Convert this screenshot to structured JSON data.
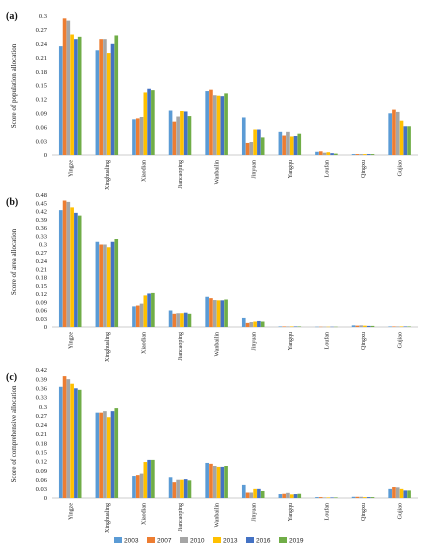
{
  "chart_data": [
    {
      "type": "bar",
      "panel_label": "(a)",
      "ylabel": "Score of population allocation",
      "ylim": [
        0,
        0.3
      ],
      "yticks": [
        "0",
        "0.03",
        "0.06",
        "0.09",
        "0.12",
        "0.15",
        "0.18",
        "0.21",
        "0.24",
        "0.27",
        "0.3"
      ],
      "categories": [
        "Yingze",
        "Xinghualing",
        "Xiaodian",
        "Jiancaoping",
        "Wanbailin",
        "Jinyuan",
        "Yangqu",
        "Loufan",
        "Qingxu",
        "Gujiao"
      ],
      "series": [
        {
          "name": "2003",
          "values": [
            0.235,
            0.226,
            0.077,
            0.096,
            0.138,
            0.081,
            0.05,
            0.007,
            0.002,
            0.09
          ]
        },
        {
          "name": "2007",
          "values": [
            0.295,
            0.25,
            0.079,
            0.072,
            0.141,
            0.026,
            0.042,
            0.008,
            0.002,
            0.098
          ]
        },
        {
          "name": "2010",
          "values": [
            0.29,
            0.25,
            0.082,
            0.083,
            0.129,
            0.028,
            0.05,
            0.005,
            0.002,
            0.093
          ]
        },
        {
          "name": "2013",
          "values": [
            0.26,
            0.22,
            0.135,
            0.095,
            0.128,
            0.055,
            0.04,
            0.006,
            0.002,
            0.074
          ]
        },
        {
          "name": "2016",
          "values": [
            0.25,
            0.24,
            0.143,
            0.094,
            0.127,
            0.055,
            0.041,
            0.004,
            0.002,
            0.062
          ]
        },
        {
          "name": "2019",
          "values": [
            0.255,
            0.258,
            0.14,
            0.084,
            0.133,
            0.038,
            0.046,
            0.003,
            0.002,
            0.062
          ]
        }
      ]
    },
    {
      "type": "bar",
      "panel_label": "(b)",
      "ylabel": "Score of area allocation",
      "ylim": [
        0,
        0.48
      ],
      "yticks": [
        "0",
        "0.03",
        "0.06",
        "0.09",
        "0.12",
        "0.15",
        "0.18",
        "0.21",
        "0.24",
        "0.27",
        "0.3",
        "0.33",
        "0.36",
        "0.39",
        "0.42",
        "0.45",
        "0.48"
      ],
      "categories": [
        "Yingze",
        "Xinghualing",
        "Xiaodian",
        "Jiancaoping",
        "Wanbailin",
        "Jinyuan",
        "Yangqu",
        "Loufan",
        "Qingxu",
        "Gujiao"
      ],
      "series": [
        {
          "name": "2003",
          "values": [
            0.425,
            0.31,
            0.075,
            0.06,
            0.11,
            0.033,
            0.002,
            0.001,
            0.006,
            0.002
          ]
        },
        {
          "name": "2007",
          "values": [
            0.46,
            0.3,
            0.078,
            0.048,
            0.105,
            0.015,
            0.002,
            0.001,
            0.005,
            0.002
          ]
        },
        {
          "name": "2010",
          "values": [
            0.455,
            0.3,
            0.085,
            0.05,
            0.098,
            0.018,
            0.002,
            0.001,
            0.006,
            0.002
          ]
        },
        {
          "name": "2013",
          "values": [
            0.435,
            0.29,
            0.115,
            0.05,
            0.097,
            0.02,
            0.002,
            0.001,
            0.005,
            0.002
          ]
        },
        {
          "name": "2016",
          "values": [
            0.415,
            0.31,
            0.122,
            0.052,
            0.097,
            0.022,
            0.002,
            0.001,
            0.004,
            0.002
          ]
        },
        {
          "name": "2019",
          "values": [
            0.405,
            0.32,
            0.124,
            0.048,
            0.1,
            0.02,
            0.002,
            0.001,
            0.004,
            0.002
          ]
        }
      ]
    },
    {
      "type": "bar",
      "panel_label": "(c)",
      "ylabel": "Score of comprehensive allocation",
      "ylim": [
        0,
        0.42
      ],
      "yticks": [
        "0",
        "0.03",
        "0.06",
        "0.09",
        "0.12",
        "0.15",
        "0.18",
        "0.21",
        "0.24",
        "0.27",
        "0.3",
        "0.33",
        "0.36",
        "0.39",
        "0.42"
      ],
      "categories": [
        "Yingze",
        "Xinghualing",
        "Xiaodian",
        "Jiancaoping",
        "Wanbailin",
        "Jinyuan",
        "Yangqu",
        "Loufan",
        "Qingxu",
        "Gujiao"
      ],
      "series": [
        {
          "name": "2003",
          "values": [
            0.365,
            0.28,
            0.072,
            0.068,
            0.115,
            0.043,
            0.013,
            0.003,
            0.004,
            0.03
          ]
        },
        {
          "name": "2007",
          "values": [
            0.4,
            0.28,
            0.075,
            0.052,
            0.112,
            0.018,
            0.014,
            0.003,
            0.004,
            0.036
          ]
        },
        {
          "name": "2010",
          "values": [
            0.39,
            0.285,
            0.08,
            0.06,
            0.105,
            0.018,
            0.017,
            0.002,
            0.004,
            0.035
          ]
        },
        {
          "name": "2013",
          "values": [
            0.375,
            0.265,
            0.118,
            0.06,
            0.102,
            0.03,
            0.012,
            0.002,
            0.003,
            0.03
          ]
        },
        {
          "name": "2016",
          "values": [
            0.36,
            0.285,
            0.125,
            0.062,
            0.102,
            0.03,
            0.013,
            0.002,
            0.003,
            0.025
          ]
        },
        {
          "name": "2019",
          "values": [
            0.355,
            0.295,
            0.125,
            0.058,
            0.105,
            0.023,
            0.014,
            0.002,
            0.003,
            0.025
          ]
        }
      ]
    }
  ],
  "legend": {
    "placement": "bottom-center",
    "items": [
      {
        "label": "2003",
        "color": "#5B9BD5"
      },
      {
        "label": "2007",
        "color": "#ED7D31"
      },
      {
        "label": "2010",
        "color": "#A5A5A5"
      },
      {
        "label": "2013",
        "color": "#FFC000"
      },
      {
        "label": "2016",
        "color": "#4472C4"
      },
      {
        "label": "2019",
        "color": "#70AD47"
      }
    ]
  }
}
